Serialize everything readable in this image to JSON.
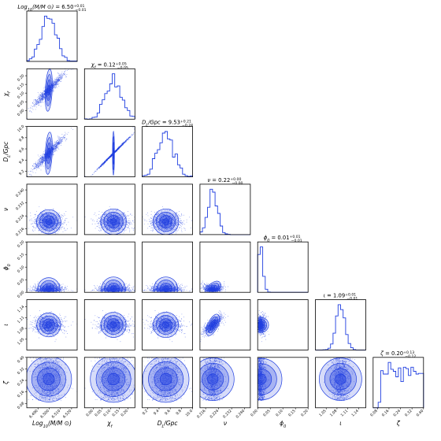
{
  "chart_data": {
    "type": "corner",
    "color": "#1f3ee0",
    "parameters": [
      {
        "key": "logm",
        "label": "Log10(M/M ⊙)",
        "range": [
          6.48,
          6.525
        ],
        "ticks": [
          "6.490",
          "6.500",
          "6.510",
          "6.520"
        ],
        "tick_values": [
          6.49,
          6.5,
          6.51,
          6.52
        ],
        "mean": 6.5,
        "sd": 0.0065,
        "dist": "normal"
      },
      {
        "key": "chi",
        "label": "χf",
        "range": [
          -0.05,
          0.24
        ],
        "ticks": [
          "0.00",
          "0.05",
          "0.10",
          "0.15",
          "0.20"
        ],
        "tick_values": [
          0.0,
          0.05,
          0.1,
          0.15,
          0.2
        ],
        "mean": 0.12,
        "sd": 0.045,
        "dist": "normal"
      },
      {
        "key": "dl",
        "label": "DL/Gpc",
        "range": [
          9.1,
          10.0
        ],
        "ticks": [
          "9.2",
          "9.4",
          "9.6",
          "9.8",
          "10.0"
        ],
        "tick_values": [
          9.2,
          9.4,
          9.6,
          9.8,
          10.0
        ],
        "mean": 9.53,
        "sd": 0.14,
        "dist": "normal"
      },
      {
        "key": "nu",
        "label": "ν",
        "range": [
          0.2125,
          0.2435
        ],
        "ticks": [
          "0.216",
          "0.224",
          "0.232",
          "0.240"
        ],
        "tick_values": [
          0.216,
          0.224,
          0.232,
          0.24
        ],
        "mean": 0.2205,
        "sd": 0.0028,
        "dist": "normal"
      },
      {
        "key": "phi0",
        "label": "ϕ0",
        "range": [
          0.0,
          0.2
        ],
        "ticks": [
          "0.00",
          "0.05",
          "0.10",
          "0.15",
          "0.20"
        ],
        "tick_values": [
          0.0,
          0.05,
          0.1,
          0.15,
          0.2
        ],
        "mean": 0.01,
        "sd": 0.012,
        "dist": "halfnormal"
      },
      {
        "key": "iota",
        "label": "ι",
        "range": [
          1.02,
          1.16
        ],
        "ticks": [
          "1.05",
          "1.08",
          "1.11",
          "1.14"
        ],
        "tick_values": [
          1.05,
          1.08,
          1.11,
          1.14
        ],
        "mean": 1.09,
        "sd": 0.012,
        "dist": "normal"
      },
      {
        "key": "zeta",
        "label": "ζ",
        "range": [
          0.05,
          0.4
        ],
        "ticks": [
          "0.08",
          "0.16",
          "0.24",
          "0.32",
          "0.40"
        ],
        "tick_values": [
          0.08,
          0.16,
          0.24,
          0.32,
          0.4
        ],
        "mean": 0.22,
        "sd": 0.1,
        "dist": "uniform"
      }
    ],
    "correlations": [
      {
        "pair": [
          "logm",
          "chi"
        ],
        "rho": 0.95
      },
      {
        "pair": [
          "logm",
          "dl"
        ],
        "rho": 0.95
      },
      {
        "pair": [
          "chi",
          "dl"
        ],
        "rho": 0.998
      },
      {
        "pair": [
          "nu",
          "phi0"
        ],
        "rho": 0.6
      },
      {
        "pair": [
          "nu",
          "iota"
        ],
        "rho": 0.7
      }
    ],
    "titles": [
      {
        "param": "Log10(M/M ⊙)",
        "name_html": "Log<tspan baseline-shift='sub' font-size='5'>10</tspan>(M/M ⊙)",
        "value": "6.50",
        "plus": "+0.01",
        "minus": "−0.01"
      },
      {
        "param": "χf",
        "name_html": "χ<tspan baseline-shift='sub' font-size='5'>f</tspan>",
        "value": "0.12",
        "plus": "+0.05",
        "minus": "−0.05"
      },
      {
        "param": "DL/Gpc",
        "name_html": "D<tspan baseline-shift='sub' font-size='5'>L</tspan>/Gpc",
        "value": "9.53",
        "plus": "+0.21",
        "minus": "−0.24"
      },
      {
        "param": "ν",
        "name_html": "ν",
        "value": "0.22",
        "plus": "+0.00",
        "minus": "−0.00"
      },
      {
        "param": "ϕ0",
        "name_html": "ϕ<tspan baseline-shift='sub' font-size='5'>0</tspan>",
        "value": "0.01",
        "plus": "+0.01",
        "minus": "−0.01"
      },
      {
        "param": "ι",
        "name_html": "ι",
        "value": "1.09",
        "plus": "+0.01",
        "minus": "−0.01"
      },
      {
        "param": "ζ",
        "name_html": "ζ",
        "value": "0.20",
        "plus": "+0.13",
        "minus": "−0.12"
      }
    ]
  }
}
